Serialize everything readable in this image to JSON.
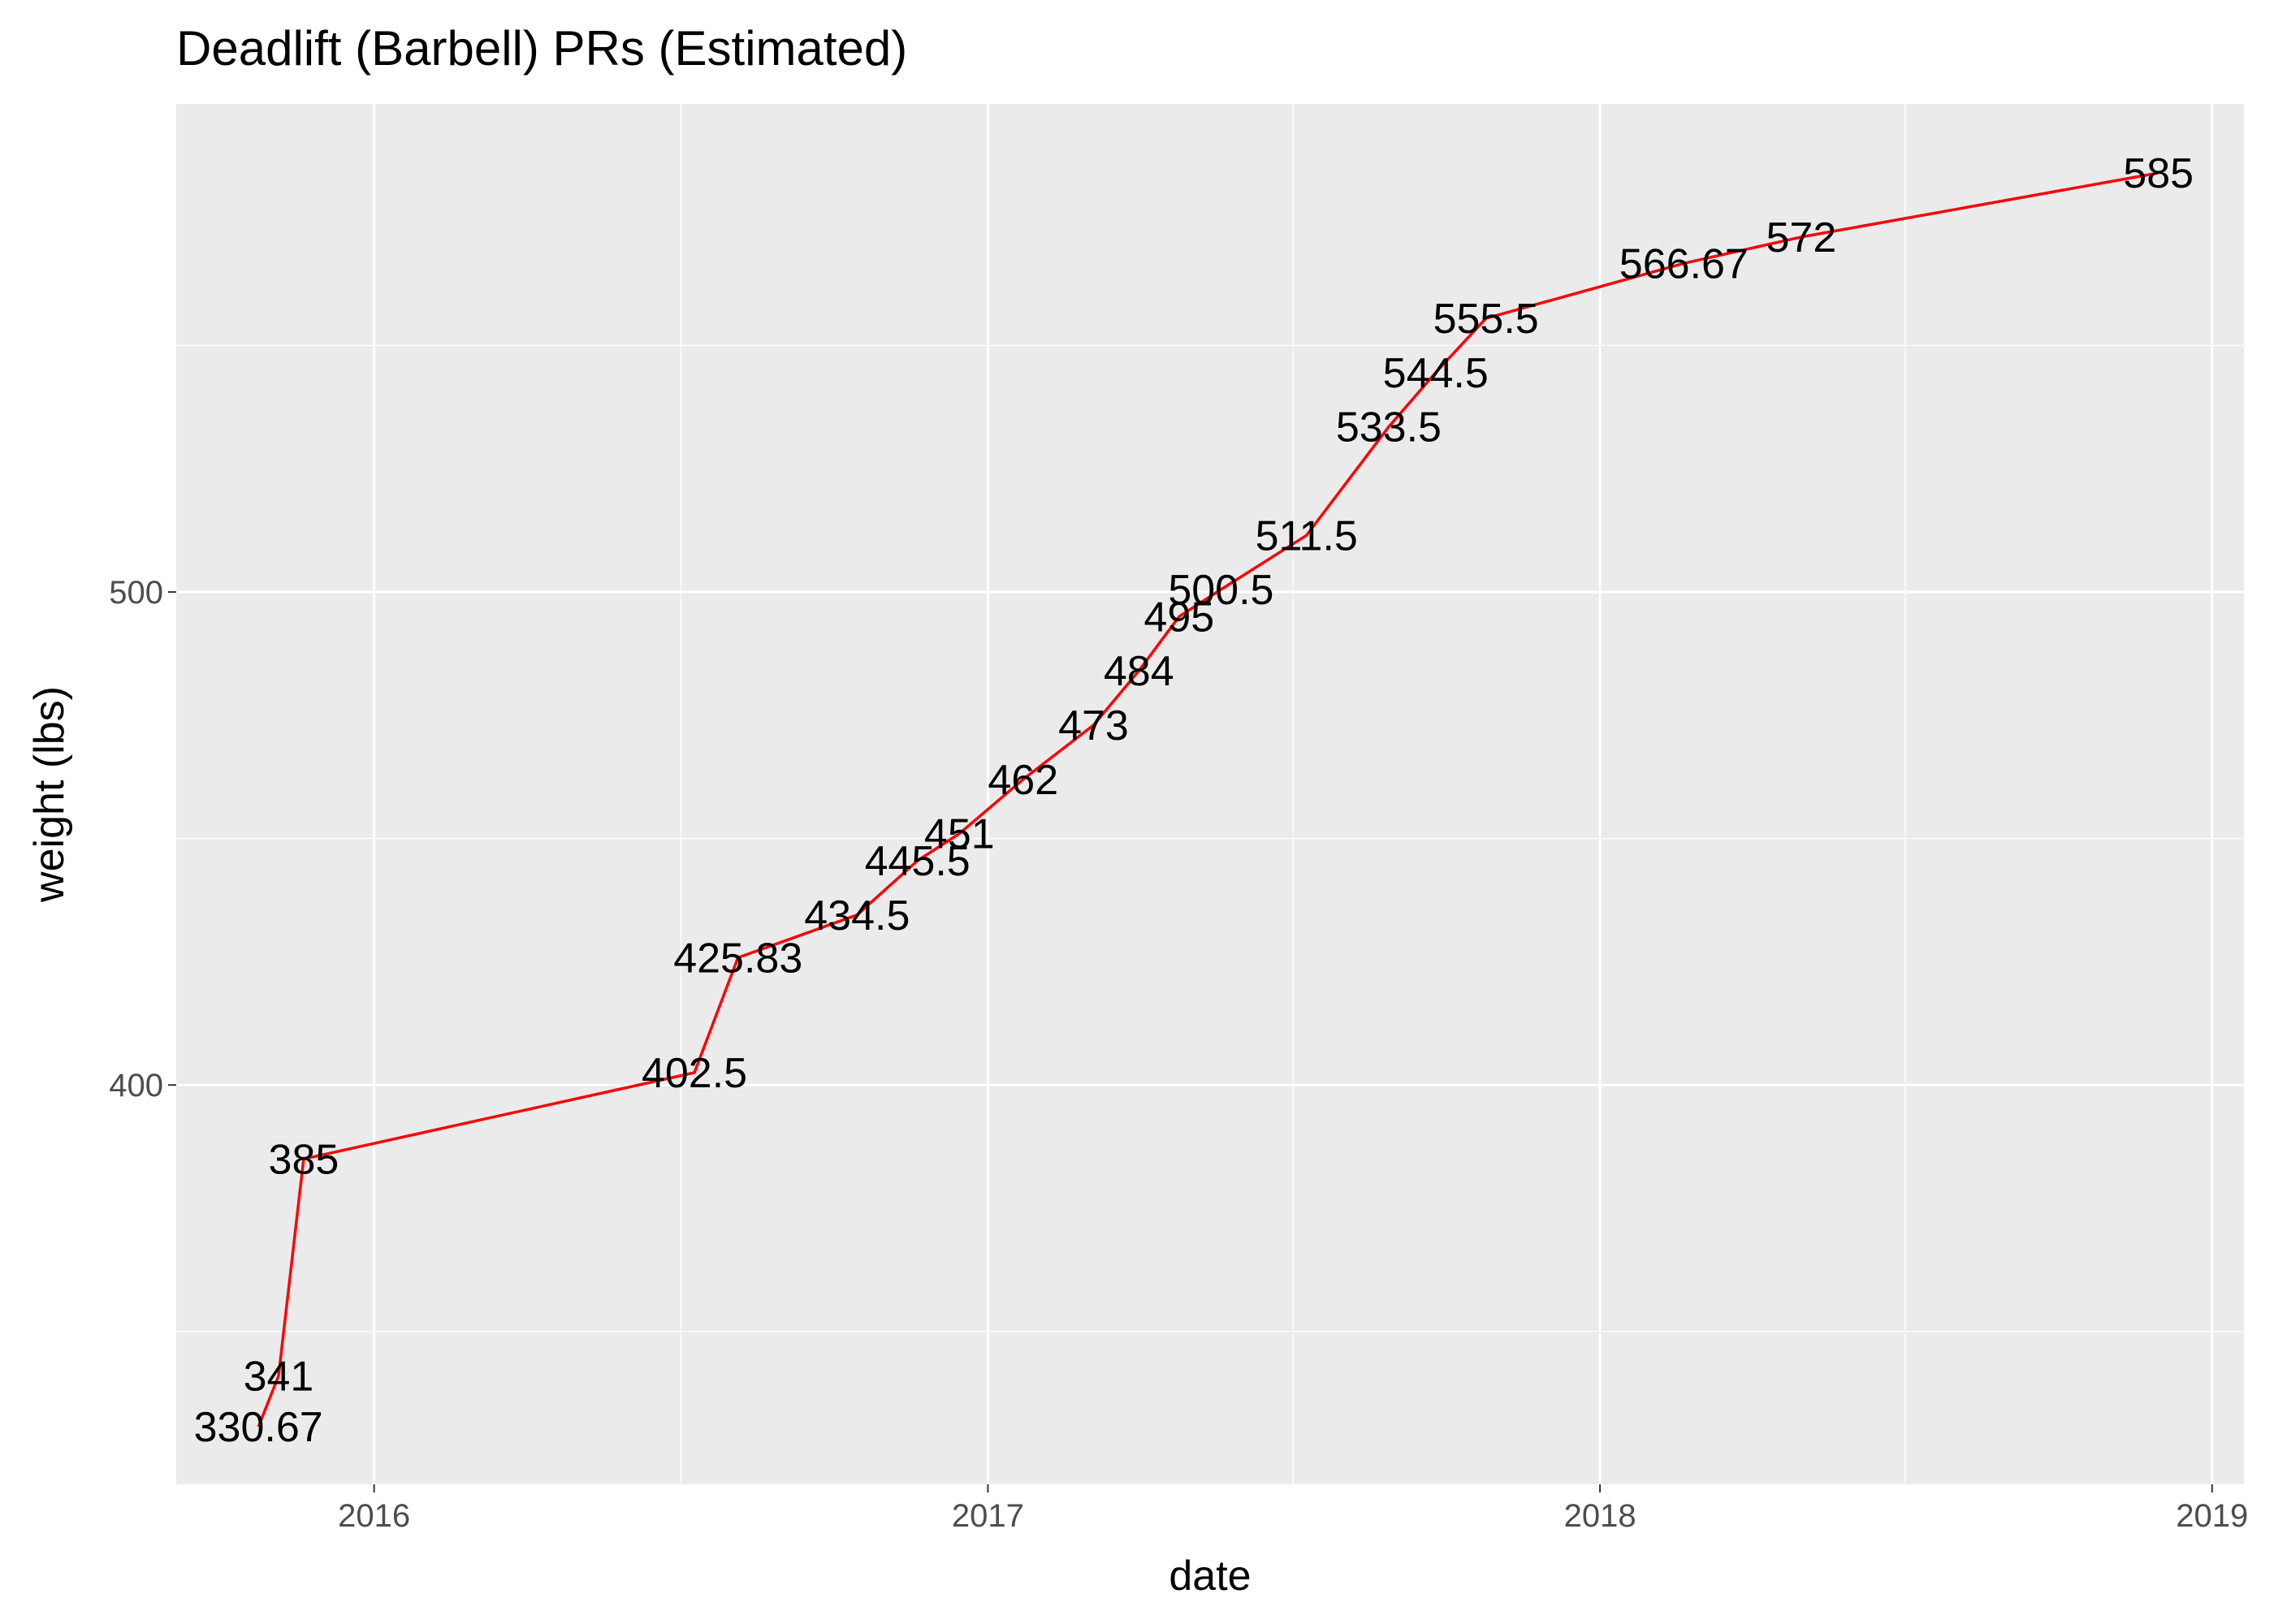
{
  "chart_data": {
    "type": "line",
    "title": "Deadlift (Barbell) PRs (Estimated)",
    "xlabel": "date",
    "ylabel": "weight (lbs)",
    "x_scale": "date",
    "xlim": [
      "2015-09-05",
      "2019-01-20"
    ],
    "ylim": [
      319,
      599
    ],
    "x_ticks": [
      {
        "date": "2016-01-01",
        "label": "2016"
      },
      {
        "date": "2017-01-01",
        "label": "2017"
      },
      {
        "date": "2018-01-01",
        "label": "2018"
      },
      {
        "date": "2019-01-01",
        "label": "2019"
      }
    ],
    "y_ticks": [
      400,
      500
    ],
    "y_minor_ticks": [
      350,
      450,
      550
    ],
    "grid": true,
    "legend": "none",
    "colors": {
      "panel_background": "#ebebeb",
      "grid": "#ffffff",
      "line": "#ff0000",
      "text": "#000000",
      "tick_text": "#4d4d4d"
    },
    "series": [
      {
        "points": [
          {
            "x": "2015-10-24",
            "y": 330.67,
            "label": "330.67"
          },
          {
            "x": "2015-11-05",
            "y": 341,
            "label": "341"
          },
          {
            "x": "2015-11-20",
            "y": 385,
            "label": "385"
          },
          {
            "x": "2016-07-10",
            "y": 402.5,
            "label": "402.5"
          },
          {
            "x": "2016-08-05",
            "y": 425.83,
            "label": "425.83"
          },
          {
            "x": "2016-10-15",
            "y": 434.5,
            "label": "434.5"
          },
          {
            "x": "2016-11-20",
            "y": 445.5,
            "label": "445.5"
          },
          {
            "x": "2016-12-15",
            "y": 451,
            "label": "451"
          },
          {
            "x": "2017-01-22",
            "y": 462,
            "label": "462"
          },
          {
            "x": "2017-03-05",
            "y": 473,
            "label": "473"
          },
          {
            "x": "2017-04-01",
            "y": 484,
            "label": "484"
          },
          {
            "x": "2017-04-25",
            "y": 495,
            "label": "495"
          },
          {
            "x": "2017-05-20",
            "y": 500.5,
            "label": "500.5"
          },
          {
            "x": "2017-07-10",
            "y": 511.5,
            "label": "511.5"
          },
          {
            "x": "2017-08-28",
            "y": 533.5,
            "label": "533.5"
          },
          {
            "x": "2017-09-25",
            "y": 544.5,
            "label": "544.5"
          },
          {
            "x": "2017-10-25",
            "y": 555.5,
            "label": "555.5"
          },
          {
            "x": "2018-02-20",
            "y": 566.67,
            "label": "566.67"
          },
          {
            "x": "2018-05-01",
            "y": 572,
            "label": "572"
          },
          {
            "x": "2018-11-30",
            "y": 585,
            "label": "585"
          }
        ]
      }
    ]
  }
}
